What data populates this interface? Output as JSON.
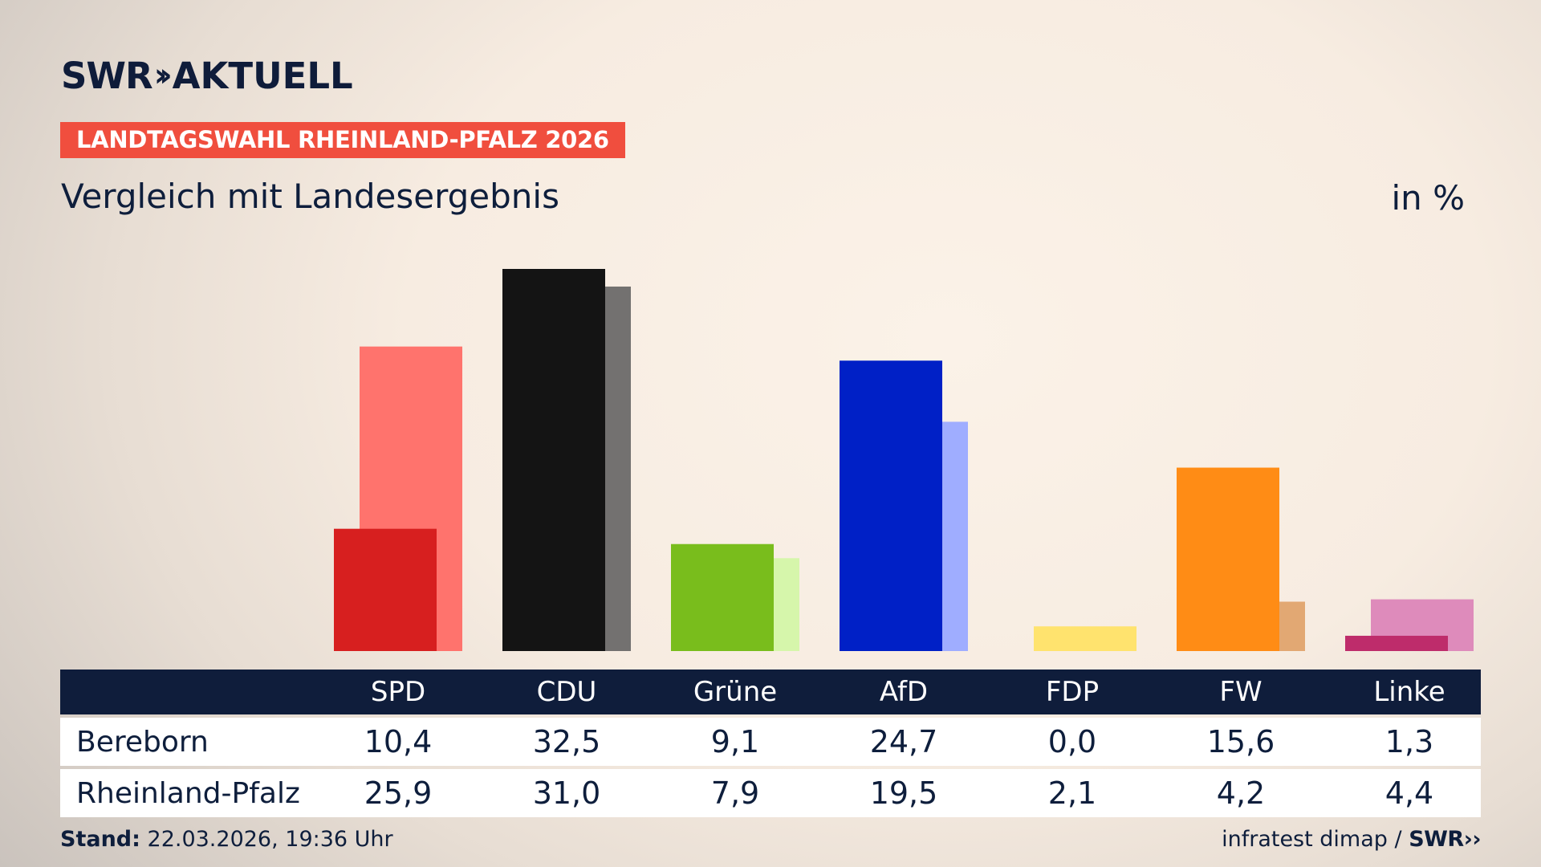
{
  "brand": {
    "logo_left": "SWR",
    "logo_right": "AKTUELL",
    "footer_logo": "SWR"
  },
  "badge": "LANDTAGSWAHL RHEINLAND-PFALZ 2026",
  "subtitle": "Vergleich mit Landesergebnis",
  "unit": "in %",
  "colors": {
    "accent": "#f04e3e",
    "navy": "#0f1d3b"
  },
  "chart_data": {
    "type": "bar",
    "categories": [
      "SPD",
      "CDU",
      "Grüne",
      "AfD",
      "FDP",
      "FW",
      "Linke"
    ],
    "series": [
      {
        "name": "Bereborn",
        "values": [
          10.4,
          32.5,
          9.1,
          24.7,
          0.0,
          15.6,
          1.3
        ]
      },
      {
        "name": "Rheinland-Pfalz",
        "values": [
          25.9,
          31.0,
          7.9,
          19.5,
          2.1,
          4.2,
          4.4
        ]
      }
    ],
    "ylim": [
      0,
      32.5
    ],
    "grid": false,
    "legend": "table-below",
    "table": {
      "rows": [
        {
          "label": "Bereborn",
          "cells": [
            "10,4",
            "32,5",
            "9,1",
            "24,7",
            "0,0",
            "15,6",
            "1,3"
          ]
        },
        {
          "label": "Rheinland-Pfalz",
          "cells": [
            "25,9",
            "31,0",
            "7,9",
            "19,5",
            "2,1",
            "4,2",
            "4,4"
          ]
        }
      ]
    },
    "party_colors": {
      "local": [
        "#d71f1f",
        "#141414",
        "#79bd1c",
        "#0020c6",
        "#ffe36e",
        "#ff8c15",
        "#be2c6b"
      ],
      "state": [
        "#ff736d",
        "#737170",
        "#d6f6ab",
        "#9fadff",
        "#ffe36e",
        "#e2a873",
        "#de8bbb"
      ]
    }
  },
  "footer": {
    "stand_label": "Stand:",
    "stand_value": "22.03.2026, 19:36 Uhr",
    "source": "infratest dimap /"
  }
}
